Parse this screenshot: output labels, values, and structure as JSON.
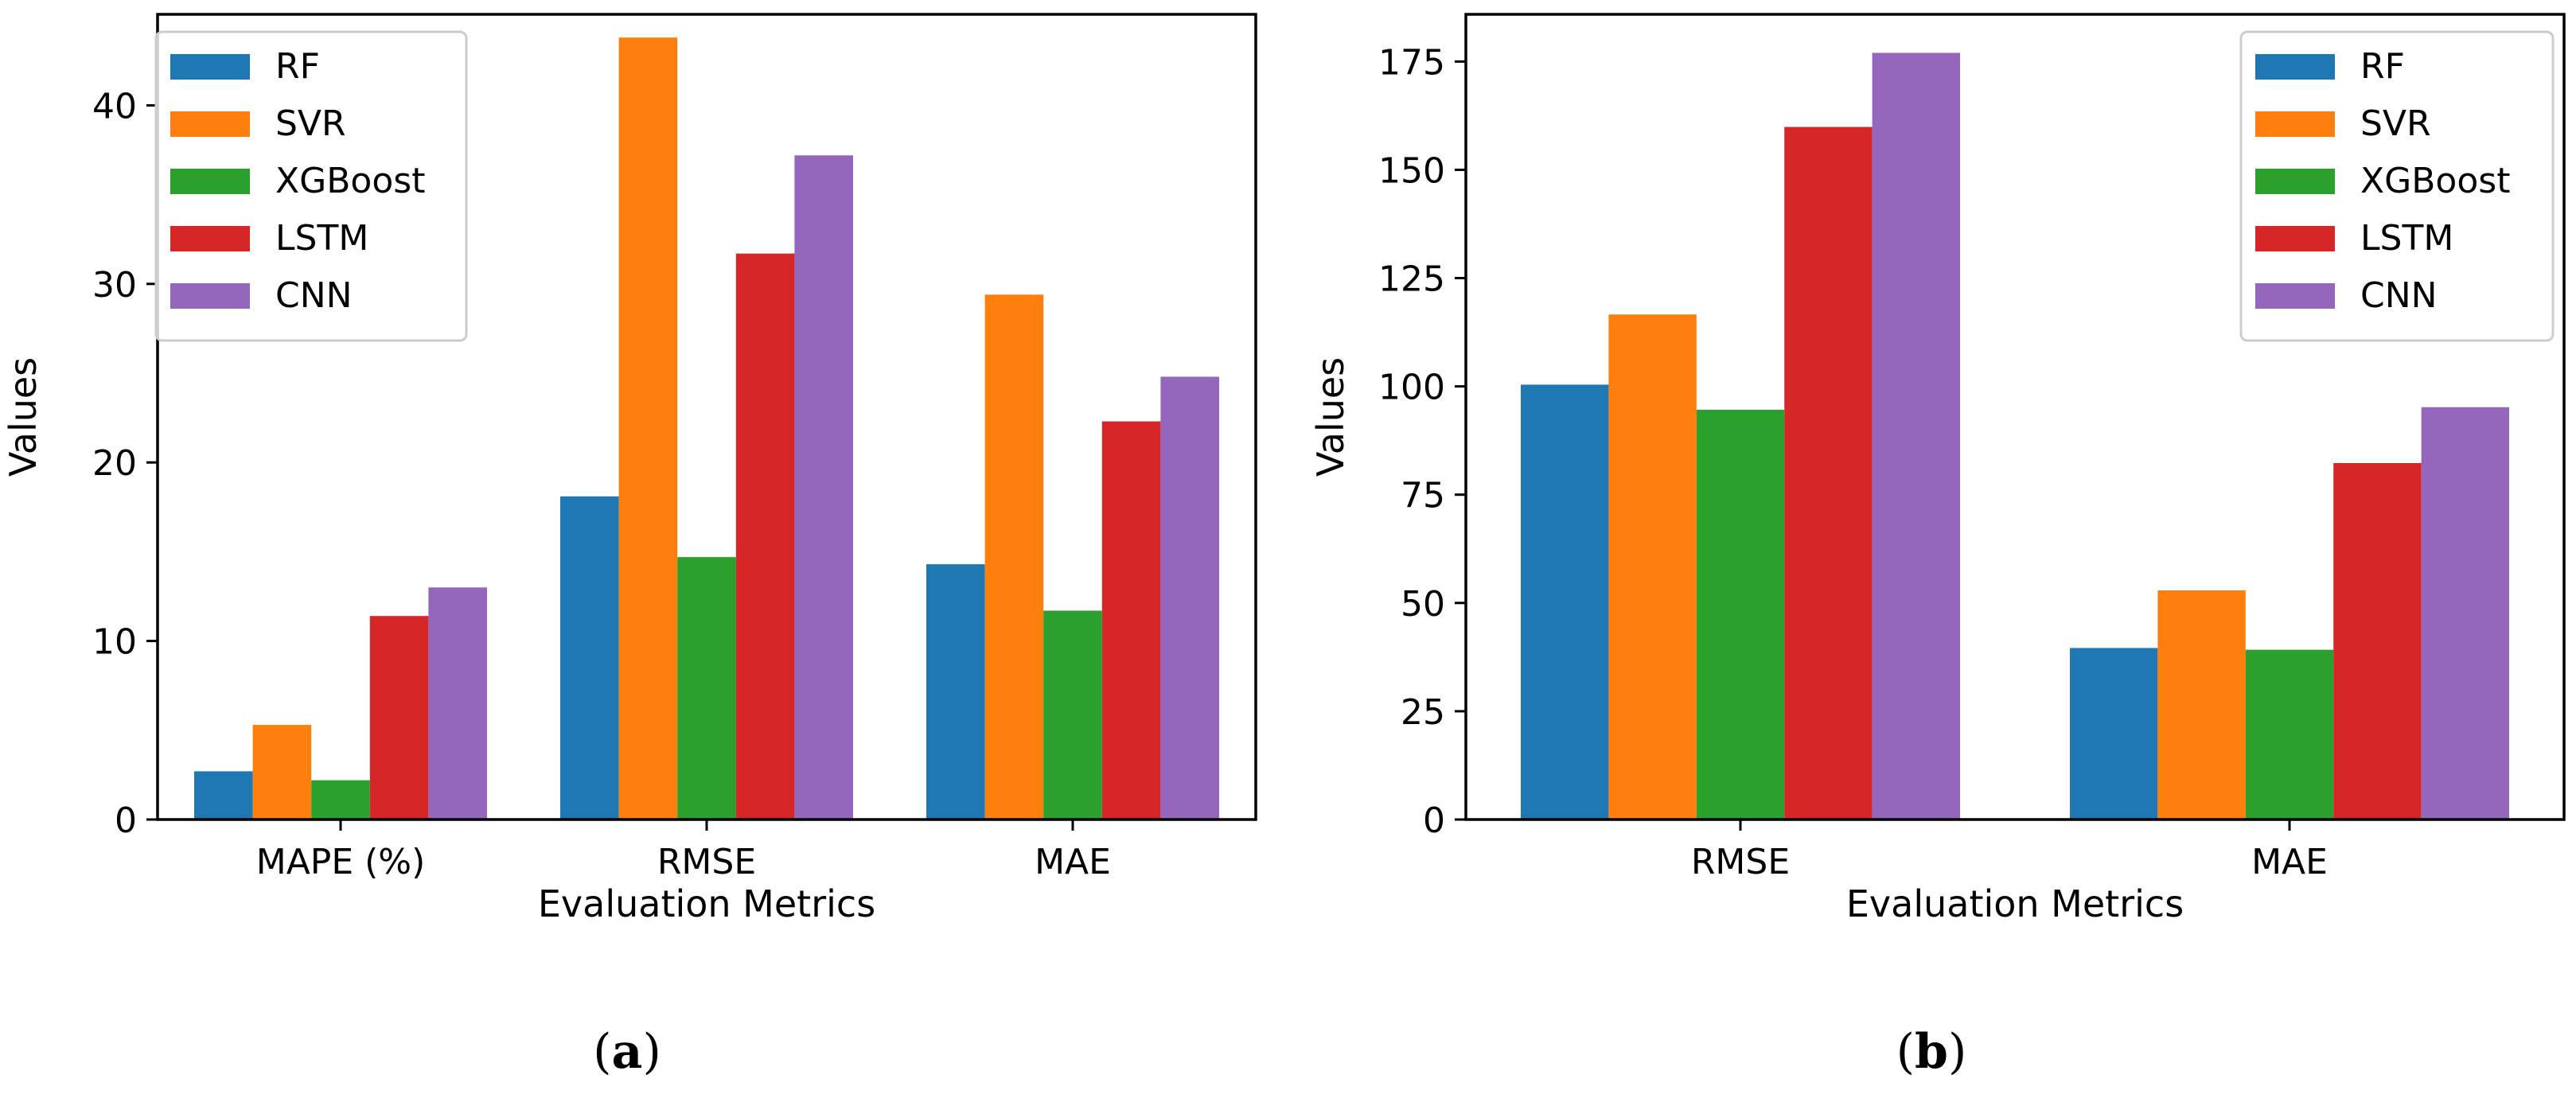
{
  "colors": {
    "RF": "#1f77b4",
    "SVR": "#ff7f0e",
    "XGBoost": "#2ca02c",
    "LSTM": "#d62728",
    "CNN": "#9467bd"
  },
  "chart_data": [
    {
      "type": "bar",
      "caption": "(a)",
      "categories": [
        "MAPE (%)",
        "RMSE",
        "MAE"
      ],
      "series": [
        {
          "name": "RF",
          "values": [
            2.7,
            18.1,
            14.3
          ]
        },
        {
          "name": "SVR",
          "values": [
            5.3,
            43.8,
            29.4
          ]
        },
        {
          "name": "XGBoost",
          "values": [
            2.2,
            14.7,
            11.7
          ]
        },
        {
          "name": "LSTM",
          "values": [
            11.4,
            31.7,
            22.3
          ]
        },
        {
          "name": "CNN",
          "values": [
            13.0,
            37.2,
            24.8
          ]
        }
      ],
      "xlabel": "Evaluation Metrics",
      "ylabel": "Values",
      "ylim": [
        0,
        45.1
      ],
      "yticks": [
        0,
        10,
        20,
        30,
        40
      ],
      "legend": "top-left",
      "grid": false
    },
    {
      "type": "bar",
      "caption": "(b)",
      "categories": [
        "RMSE",
        "MAE"
      ],
      "series": [
        {
          "name": "RF",
          "values": [
            100.4,
            39.6
          ]
        },
        {
          "name": "SVR",
          "values": [
            116.6,
            52.9
          ]
        },
        {
          "name": "XGBoost",
          "values": [
            94.6,
            39.2
          ]
        },
        {
          "name": "LSTM",
          "values": [
            159.9,
            82.3
          ]
        },
        {
          "name": "CNN",
          "values": [
            177.0,
            95.2
          ]
        }
      ],
      "xlabel": "Evaluation Metrics",
      "ylabel": "Values",
      "ylim": [
        0,
        185.9
      ],
      "yticks": [
        0,
        25,
        50,
        75,
        100,
        125,
        150,
        175
      ],
      "legend": "top-right",
      "grid": false
    }
  ]
}
